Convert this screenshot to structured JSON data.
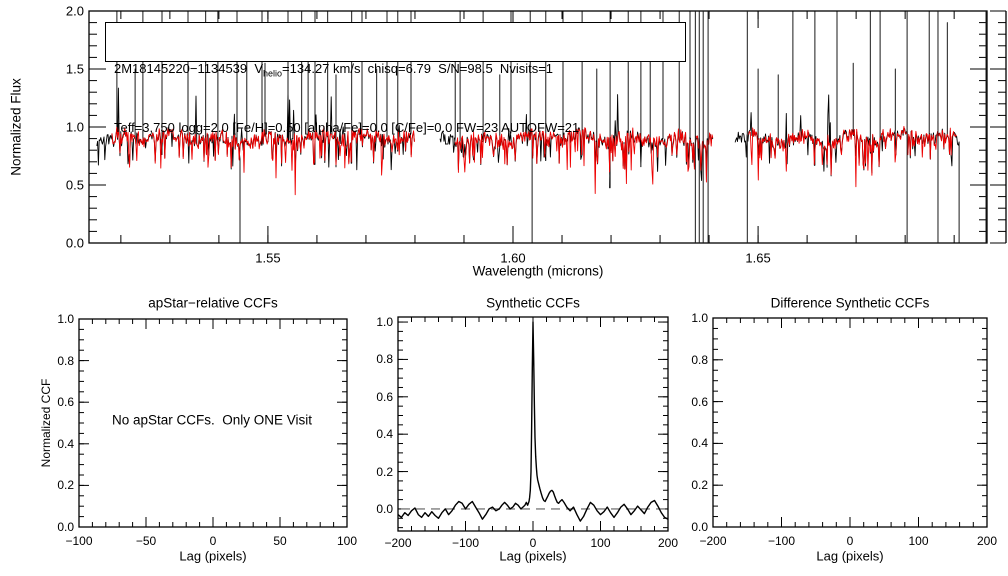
{
  "figure": {
    "background": "#ffffff",
    "frame_color": "#000000"
  },
  "chart_data": [
    {
      "id": "spectrum",
      "type": "line",
      "title": "",
      "xlabel": "Wavelength (microns)",
      "ylabel": "Normalized Flux",
      "x_axis": {
        "min": 1.5135,
        "max": 1.6967,
        "ticks": [
          1.55,
          1.6,
          1.65
        ],
        "tick_labels": [
          "1.55",
          "1.60",
          "1.65"
        ],
        "minor_step": 0.01
      },
      "y_axis": {
        "min": 0.0,
        "max": 2.0,
        "ticks": [
          0.0,
          0.5,
          1.0,
          1.5,
          2.0
        ],
        "tick_labels": [
          "0.0",
          "0.5",
          "1.0",
          "1.5",
          "2.0"
        ],
        "minor_step": 0.1
      },
      "annotation": {
        "line1_pre": "2M18145220−1134539  V",
        "line1_sub": "helio",
        "line1_post": "=134.27 km/s  chisq=6.79  S/N=98.5  Nvisits=1",
        "line2": "Teff=3,750 logg=2.0 [Fe/H]=0.50 [alpha/Fe]=0.0 [C/Fe]=0.0 FW=23 AUTOFW=21"
      },
      "series": [
        {
          "name": "observed visit spectrum",
          "color": "#000000"
        },
        {
          "name": "best-fit synthetic spectrum",
          "color": "#ee0000"
        }
      ],
      "continuum": 0.9,
      "noise_amplitude": 0.11,
      "segments": [
        {
          "black": [
            1.5151,
            1.58
          ],
          "red": [
            1.5182,
            1.58
          ]
        },
        {
          "black": [
            1.5851,
            1.6408
          ],
          "red": [
            1.5882,
            1.6408
          ]
        },
        {
          "black": [
            1.6453,
            1.691
          ],
          "red": [
            1.648,
            1.6906
          ]
        }
      ],
      "emission_spikes": [
        {
          "wl": 1.5192,
          "flux": 2.0
        },
        {
          "wl": 1.5229,
          "flux": 1.5
        },
        {
          "wl": 1.5245,
          "flux": 2.0
        },
        {
          "wl": 1.5284,
          "flux": 2.0
        },
        {
          "wl": 1.5337,
          "flux": 2.0
        },
        {
          "wl": 1.5373,
          "flux": 2.0
        },
        {
          "wl": 1.5398,
          "flux": 2.0
        },
        {
          "wl": 1.5437,
          "flux": 2.0
        },
        {
          "wl": 1.5457,
          "flux": 1.6
        },
        {
          "wl": 1.5488,
          "flux": 2.0
        },
        {
          "wl": 1.5494,
          "flux": 1.55
        },
        {
          "wl": 1.5541,
          "flux": 2.0
        },
        {
          "wl": 1.5569,
          "flux": 2.0
        },
        {
          "wl": 1.5582,
          "flux": 1.7
        },
        {
          "wl": 1.5596,
          "flux": 2.0
        },
        {
          "wl": 1.5622,
          "flux": 2.0
        },
        {
          "wl": 1.5639,
          "flux": 1.45
        },
        {
          "wl": 1.5671,
          "flux": 2.0
        },
        {
          "wl": 1.5692,
          "flux": 2.0
        },
        {
          "wl": 1.5722,
          "flux": 1.5
        },
        {
          "wl": 1.5743,
          "flux": 2.0
        },
        {
          "wl": 1.5765,
          "flux": 2.0
        },
        {
          "wl": 1.5792,
          "flux": 2.0
        },
        {
          "wl": 1.5882,
          "flux": 1.6
        },
        {
          "wl": 1.5892,
          "flux": 2.0
        },
        {
          "wl": 1.5939,
          "flux": 2.0
        },
        {
          "wl": 1.5973,
          "flux": 1.45
        },
        {
          "wl": 1.5996,
          "flux": 2.0
        },
        {
          "wl": 1.6035,
          "flux": 2.0
        },
        {
          "wl": 1.6067,
          "flux": 2.0
        },
        {
          "wl": 1.6102,
          "flux": 2.0
        },
        {
          "wl": 1.6141,
          "flux": 2.0
        },
        {
          "wl": 1.6171,
          "flux": 1.5
        },
        {
          "wl": 1.6198,
          "flux": 2.0
        },
        {
          "wl": 1.6235,
          "flux": 2.0
        },
        {
          "wl": 1.6261,
          "flux": 2.0
        },
        {
          "wl": 1.628,
          "flux": 1.6
        },
        {
          "wl": 1.6306,
          "flux": 2.0
        },
        {
          "wl": 1.6339,
          "flux": 2.0
        },
        {
          "wl": 1.6361,
          "flux": 2.0
        },
        {
          "wl": 1.65,
          "flux": 1.5
        },
        {
          "wl": 1.6541,
          "flux": 1.45
        },
        {
          "wl": 1.6571,
          "flux": 2.0
        },
        {
          "wl": 1.6616,
          "flux": 2.0
        },
        {
          "wl": 1.6661,
          "flux": 2.0
        },
        {
          "wl": 1.6694,
          "flux": 1.55
        },
        {
          "wl": 1.6729,
          "flux": 2.0
        },
        {
          "wl": 1.6749,
          "flux": 2.0
        },
        {
          "wl": 1.678,
          "flux": 1.5
        },
        {
          "wl": 1.6849,
          "flux": 2.0
        },
        {
          "wl": 1.6886,
          "flux": 1.9
        }
      ],
      "deep_absorptions": [
        {
          "wl": 1.5443,
          "flux": 0.0
        },
        {
          "wl": 1.6039,
          "flux": 0.0
        },
        {
          "wl": 1.691,
          "flux": 0.0
        }
      ],
      "full_range_lines": [
        1.6372,
        1.638,
        1.6388,
        1.6398,
        1.6478,
        1.6804,
        1.6867,
        1.6965
      ]
    },
    {
      "id": "apstar_ccf",
      "type": "line",
      "title": "apStar−relative CCFs",
      "xlabel": "Lag (pixels)",
      "ylabel": "Normalized CCF",
      "x_axis": {
        "min": -100,
        "max": 100,
        "ticks": [
          -100,
          -50,
          0,
          50,
          100
        ],
        "tick_labels": [
          "−100",
          "−50",
          "0",
          "50",
          "100"
        ],
        "minor_step": 10
      },
      "y_axis": {
        "min": 0.0,
        "max": 1.0,
        "ticks": [
          0.0,
          0.2,
          0.4,
          0.6,
          0.8,
          1.0
        ],
        "tick_labels": [
          "0.0",
          "0.2",
          "0.4",
          "0.6",
          "0.8",
          "1.0"
        ],
        "minor_step": 0.05
      },
      "message": "No apStar CCFs.  Only ONE Visit",
      "series": []
    },
    {
      "id": "synthetic_ccf",
      "type": "line",
      "title": "Synthetic CCFs",
      "xlabel": "Lag (pixels)",
      "ylabel": "",
      "x_axis": {
        "min": -200,
        "max": 200,
        "ticks": [
          -200,
          -100,
          0,
          100,
          200
        ],
        "tick_labels": [
          "−200",
          "−100",
          "0",
          "100",
          "200"
        ],
        "minor_step": 20
      },
      "y_axis": {
        "min": -0.118,
        "max": 1.027,
        "ticks": [
          0.0,
          0.2,
          0.4,
          0.6,
          0.8,
          1.0
        ],
        "tick_labels": [
          "0.0",
          "0.2",
          "0.4",
          "0.6",
          "0.8",
          "1.0"
        ],
        "minor_step": 0.05
      },
      "zero_line": {
        "value": 0.0,
        "style": "dashed",
        "color": "#909090"
      },
      "peak": {
        "lag": 0,
        "height": 1.0
      },
      "series": [
        {
          "name": "synthetic CCF",
          "color": "#000000",
          "points": [
            [
              -200,
              -0.03
            ],
            [
              -195,
              -0.045
            ],
            [
              -190,
              -0.02
            ],
            [
              -185,
              -0.035
            ],
            [
              -180,
              -0.01
            ],
            [
              -175,
              0.005
            ],
            [
              -170,
              -0.03
            ],
            [
              -165,
              -0.045
            ],
            [
              -160,
              -0.02
            ],
            [
              -155,
              -0.04
            ],
            [
              -150,
              -0.015
            ],
            [
              -145,
              -0.035
            ],
            [
              -140,
              -0.05
            ],
            [
              -135,
              -0.02
            ],
            [
              -130,
              0
            ],
            [
              -125,
              -0.03
            ],
            [
              -120,
              -0.01
            ],
            [
              -115,
              0.02
            ],
            [
              -110,
              0.04
            ],
            [
              -105,
              0.03
            ],
            [
              -100,
              0
            ],
            [
              -95,
              0.025
            ],
            [
              -90,
              0.04
            ],
            [
              -85,
              0.01
            ],
            [
              -80,
              -0.02
            ],
            [
              -75,
              -0.055
            ],
            [
              -70,
              -0.03
            ],
            [
              -65,
              0
            ],
            [
              -60,
              0.01
            ],
            [
              -55,
              -0.01
            ],
            [
              -50,
              0
            ],
            [
              -46,
              0.02
            ],
            [
              -42,
              0.035
            ],
            [
              -38,
              0.02
            ],
            [
              -34,
              0
            ],
            [
              -30,
              0.01
            ],
            [
              -26,
              0.03
            ],
            [
              -22,
              0.02
            ],
            [
              -18,
              0
            ],
            [
              -15,
              0.01
            ],
            [
              -12,
              0.02
            ],
            [
              -10,
              0.035
            ],
            [
              -8,
              0.02
            ],
            [
              -6,
              0.04
            ],
            [
              -5,
              0.06
            ],
            [
              -4,
              0.1
            ],
            [
              -3,
              0.2
            ],
            [
              -2,
              0.42
            ],
            [
              -1,
              0.75
            ],
            [
              0,
              1.0
            ],
            [
              1,
              0.8
            ],
            [
              2,
              0.55
            ],
            [
              3,
              0.38
            ],
            [
              4,
              0.28
            ],
            [
              5,
              0.22
            ],
            [
              6,
              0.18
            ],
            [
              7,
              0.155
            ],
            [
              8,
              0.14
            ],
            [
              10,
              0.11
            ],
            [
              12,
              0.085
            ],
            [
              14,
              0.06
            ],
            [
              16,
              0.045
            ],
            [
              18,
              0.04
            ],
            [
              20,
              0.055
            ],
            [
              22,
              0.07
            ],
            [
              24,
              0.085
            ],
            [
              26,
              0.095
            ],
            [
              28,
              0.1
            ],
            [
              30,
              0.09
            ],
            [
              32,
              0.07
            ],
            [
              34,
              0.05
            ],
            [
              36,
              0.035
            ],
            [
              38,
              0.03
            ],
            [
              40,
              0.04
            ],
            [
              43,
              0.05
            ],
            [
              46,
              0.035
            ],
            [
              50,
              0.01
            ],
            [
              55,
              -0.01
            ],
            [
              60,
              0.01
            ],
            [
              65,
              -0.03
            ],
            [
              70,
              -0.065
            ],
            [
              75,
              -0.04
            ],
            [
              80,
              0
            ],
            [
              85,
              0.035
            ],
            [
              90,
              0.02
            ],
            [
              95,
              -0.01
            ],
            [
              100,
              -0.03
            ],
            [
              105,
              -0.015
            ],
            [
              110,
              0.01
            ],
            [
              115,
              -0.02
            ],
            [
              120,
              -0.045
            ],
            [
              125,
              -0.02
            ],
            [
              130,
              0.01
            ],
            [
              135,
              0.025
            ],
            [
              140,
              0
            ],
            [
              145,
              -0.03
            ],
            [
              150,
              -0.01
            ],
            [
              155,
              0.015
            ],
            [
              160,
              -0.005
            ],
            [
              165,
              -0.025
            ],
            [
              170,
              0.01
            ],
            [
              175,
              0.035
            ],
            [
              180,
              0.045
            ],
            [
              185,
              0.015
            ],
            [
              190,
              -0.02
            ],
            [
              195,
              -0.045
            ],
            [
              200,
              -0.055
            ]
          ]
        }
      ]
    },
    {
      "id": "difference_synthetic_ccf",
      "type": "line",
      "title": "Difference Synthetic CCFs",
      "xlabel": "Lag (pixels)",
      "ylabel": "",
      "x_axis": {
        "min": -200,
        "max": 200,
        "ticks": [
          -200,
          -100,
          0,
          100,
          200
        ],
        "tick_labels": [
          "−200",
          "−100",
          "0",
          "100",
          "200"
        ],
        "minor_step": 20
      },
      "y_axis": {
        "min": 0.0,
        "max": 1.0,
        "ticks": [
          0.0,
          0.2,
          0.4,
          0.6,
          0.8,
          1.0
        ],
        "tick_labels": [
          "0.0",
          "0.2",
          "0.4",
          "0.6",
          "0.8",
          "1.0"
        ],
        "minor_step": 0.05
      },
      "series": []
    }
  ]
}
